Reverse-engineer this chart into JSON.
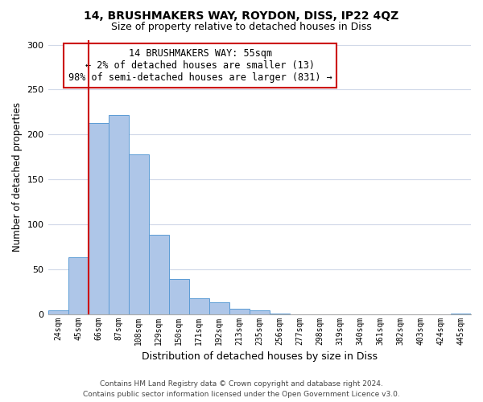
{
  "title1": "14, BRUSHMAKERS WAY, ROYDON, DISS, IP22 4QZ",
  "title2": "Size of property relative to detached houses in Diss",
  "xlabel": "Distribution of detached houses by size in Diss",
  "ylabel": "Number of detached properties",
  "categories": [
    "24sqm",
    "45sqm",
    "66sqm",
    "87sqm",
    "108sqm",
    "129sqm",
    "150sqm",
    "171sqm",
    "192sqm",
    "213sqm",
    "235sqm",
    "256sqm",
    "277sqm",
    "298sqm",
    "319sqm",
    "340sqm",
    "361sqm",
    "382sqm",
    "403sqm",
    "424sqm",
    "445sqm"
  ],
  "values": [
    4,
    63,
    213,
    222,
    178,
    88,
    39,
    18,
    13,
    6,
    4,
    1,
    0,
    0,
    0,
    0,
    0,
    0,
    0,
    0,
    1
  ],
  "bar_color": "#aec6e8",
  "bar_edge_color": "#5b9bd5",
  "vline_color": "#cc0000",
  "annotation_text": "14 BRUSHMAKERS WAY: 55sqm\n← 2% of detached houses are smaller (13)\n98% of semi-detached houses are larger (831) →",
  "annotation_box_color": "#ffffff",
  "annotation_box_edge": "#cc0000",
  "ylim": [
    0,
    305
  ],
  "yticks": [
    0,
    50,
    100,
    150,
    200,
    250,
    300
  ],
  "footer1": "Contains HM Land Registry data © Crown copyright and database right 2024.",
  "footer2": "Contains public sector information licensed under the Open Government Licence v3.0.",
  "background_color": "#ffffff",
  "grid_color": "#d0d8e8"
}
